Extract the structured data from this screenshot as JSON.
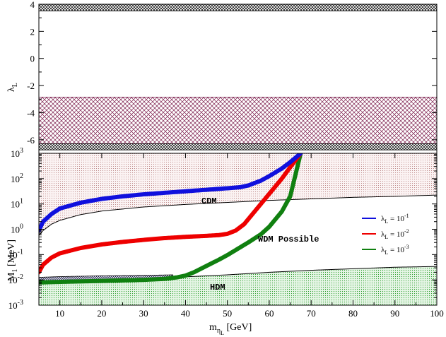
{
  "chart_data": [
    {
      "type": "area",
      "panel": "top",
      "ylabel": {
        "base": "λ",
        "sub": "L"
      },
      "xlim": [
        5,
        100
      ],
      "ylim": [
        -7,
        4
      ],
      "y_ticks": [
        "4",
        "2",
        "0",
        "-2",
        "-4",
        "-6"
      ],
      "y_tick_values": [
        4,
        2,
        0,
        -2,
        -4,
        -6
      ],
      "regions": [
        {
          "name": "excluded-top",
          "y_range": [
            3.5,
            4
          ],
          "pattern": "dense-crosshatch",
          "color": "#000000"
        },
        {
          "name": "excluded-middle",
          "y_range": [
            -6.3,
            -2.85
          ],
          "pattern": "crosshatch",
          "color": "#7a1a4a"
        },
        {
          "name": "excluded-bottom",
          "y_range": [
            -6.75,
            -6.3
          ],
          "pattern": "dense-crosshatch",
          "color": "#000000"
        }
      ]
    },
    {
      "type": "line",
      "panel": "bottom",
      "xlabel": {
        "base": "m",
        "sub": "η",
        "subsub": "L",
        "unit": " [GeV]"
      },
      "ylabel": {
        "base": "M",
        "sub": "1",
        "unit": " [MeV]"
      },
      "xlim": [
        5,
        100
      ],
      "ylim_log10": [
        -3,
        3
      ],
      "x_ticks": [
        "10",
        "20",
        "30",
        "40",
        "50",
        "60",
        "70",
        "80",
        "90",
        "100"
      ],
      "x_tick_values": [
        10,
        20,
        30,
        40,
        50,
        60,
        70,
        80,
        90,
        100
      ],
      "y_ticks": [
        {
          "base": "10",
          "exp": "-3",
          "value": -3
        },
        {
          "base": "10",
          "exp": "-2",
          "value": -2
        },
        {
          "base": "10",
          "exp": "-1",
          "value": -1
        },
        {
          "base": "10",
          "exp": "0",
          "value": 0
        },
        {
          "base": "10",
          "exp": "1",
          "value": 1
        },
        {
          "base": "10",
          "exp": "2",
          "value": 2
        },
        {
          "base": "10",
          "exp": "3",
          "value": 3
        }
      ],
      "boundaries": {
        "cdm_lower": {
          "x": [
            5,
            6,
            8,
            10,
            15,
            20,
            30,
            40,
            50,
            60,
            70,
            80,
            90,
            100
          ],
          "log10_y": [
            -0.25,
            -0.05,
            0.2,
            0.35,
            0.58,
            0.72,
            0.88,
            0.98,
            1.06,
            1.14,
            1.2,
            1.26,
            1.3,
            1.35
          ]
        },
        "hdm_upper": {
          "x": [
            5,
            10,
            20,
            30,
            40,
            50,
            60,
            70,
            80,
            90,
            100
          ],
          "log10_y": [
            -2.1,
            -2.08,
            -2.03,
            -1.96,
            -1.88,
            -1.8,
            -1.7,
            -1.62,
            -1.56,
            -1.5,
            -1.47
          ]
        },
        "hdm_band_upper": {
          "x": [
            5,
            10,
            20,
            30,
            37
          ],
          "log10_y": [
            -1.9,
            -1.87,
            -1.84,
            -1.82,
            -1.8
          ]
        }
      },
      "series": [
        {
          "name": "λL = 10^-1",
          "color": "#1010dd",
          "x": [
            5,
            6,
            8,
            10,
            15,
            20,
            25,
            30,
            35,
            40,
            45,
            50,
            53,
            55,
            58,
            60,
            63,
            65,
            67.5
          ],
          "log10_y": [
            -0.05,
            0.3,
            0.6,
            0.82,
            1.05,
            1.2,
            1.3,
            1.38,
            1.44,
            1.5,
            1.56,
            1.62,
            1.66,
            1.73,
            1.92,
            2.1,
            2.4,
            2.65,
            3.0
          ]
        },
        {
          "name": "λL = 10^-2",
          "color": "#ee0000",
          "x": [
            5,
            6,
            8,
            10,
            15,
            20,
            25,
            30,
            35,
            40,
            45,
            48,
            50,
            52,
            54,
            56,
            58,
            60,
            63,
            65,
            67.5
          ],
          "log10_y": [
            -1.7,
            -1.4,
            -1.12,
            -0.95,
            -0.74,
            -0.6,
            -0.5,
            -0.42,
            -0.35,
            -0.3,
            -0.26,
            -0.23,
            -0.18,
            -0.05,
            0.2,
            0.6,
            1.0,
            1.4,
            2.0,
            2.45,
            3.0
          ]
        },
        {
          "name": "λL = 10^-3",
          "color": "#108010",
          "x": [
            5,
            10,
            15,
            20,
            25,
            30,
            35,
            38,
            40,
            42,
            45,
            48,
            50,
            52,
            55,
            58,
            60,
            63,
            65,
            67.5
          ],
          "log10_y": [
            -2.1,
            -2.08,
            -2.06,
            -2.04,
            -2.02,
            -2.0,
            -1.96,
            -1.9,
            -1.83,
            -1.7,
            -1.45,
            -1.2,
            -1.02,
            -0.82,
            -0.52,
            -0.2,
            0.1,
            0.7,
            1.3,
            3.0
          ]
        }
      ],
      "legend": {
        "position": "middle-right",
        "entries": [
          {
            "color": "#1010dd",
            "base": "λ",
            "sub": "L",
            "text": " = 10",
            "exp": "-1"
          },
          {
            "color": "#ee0000",
            "base": "λ",
            "sub": "L",
            "text": " = 10",
            "exp": "-2"
          },
          {
            "color": "#108010",
            "base": "λ",
            "sub": "L",
            "text": " = 10",
            "exp": "-3"
          }
        ]
      },
      "annotations": [
        "CDM",
        "WDM Possible",
        "HDM"
      ]
    }
  ]
}
